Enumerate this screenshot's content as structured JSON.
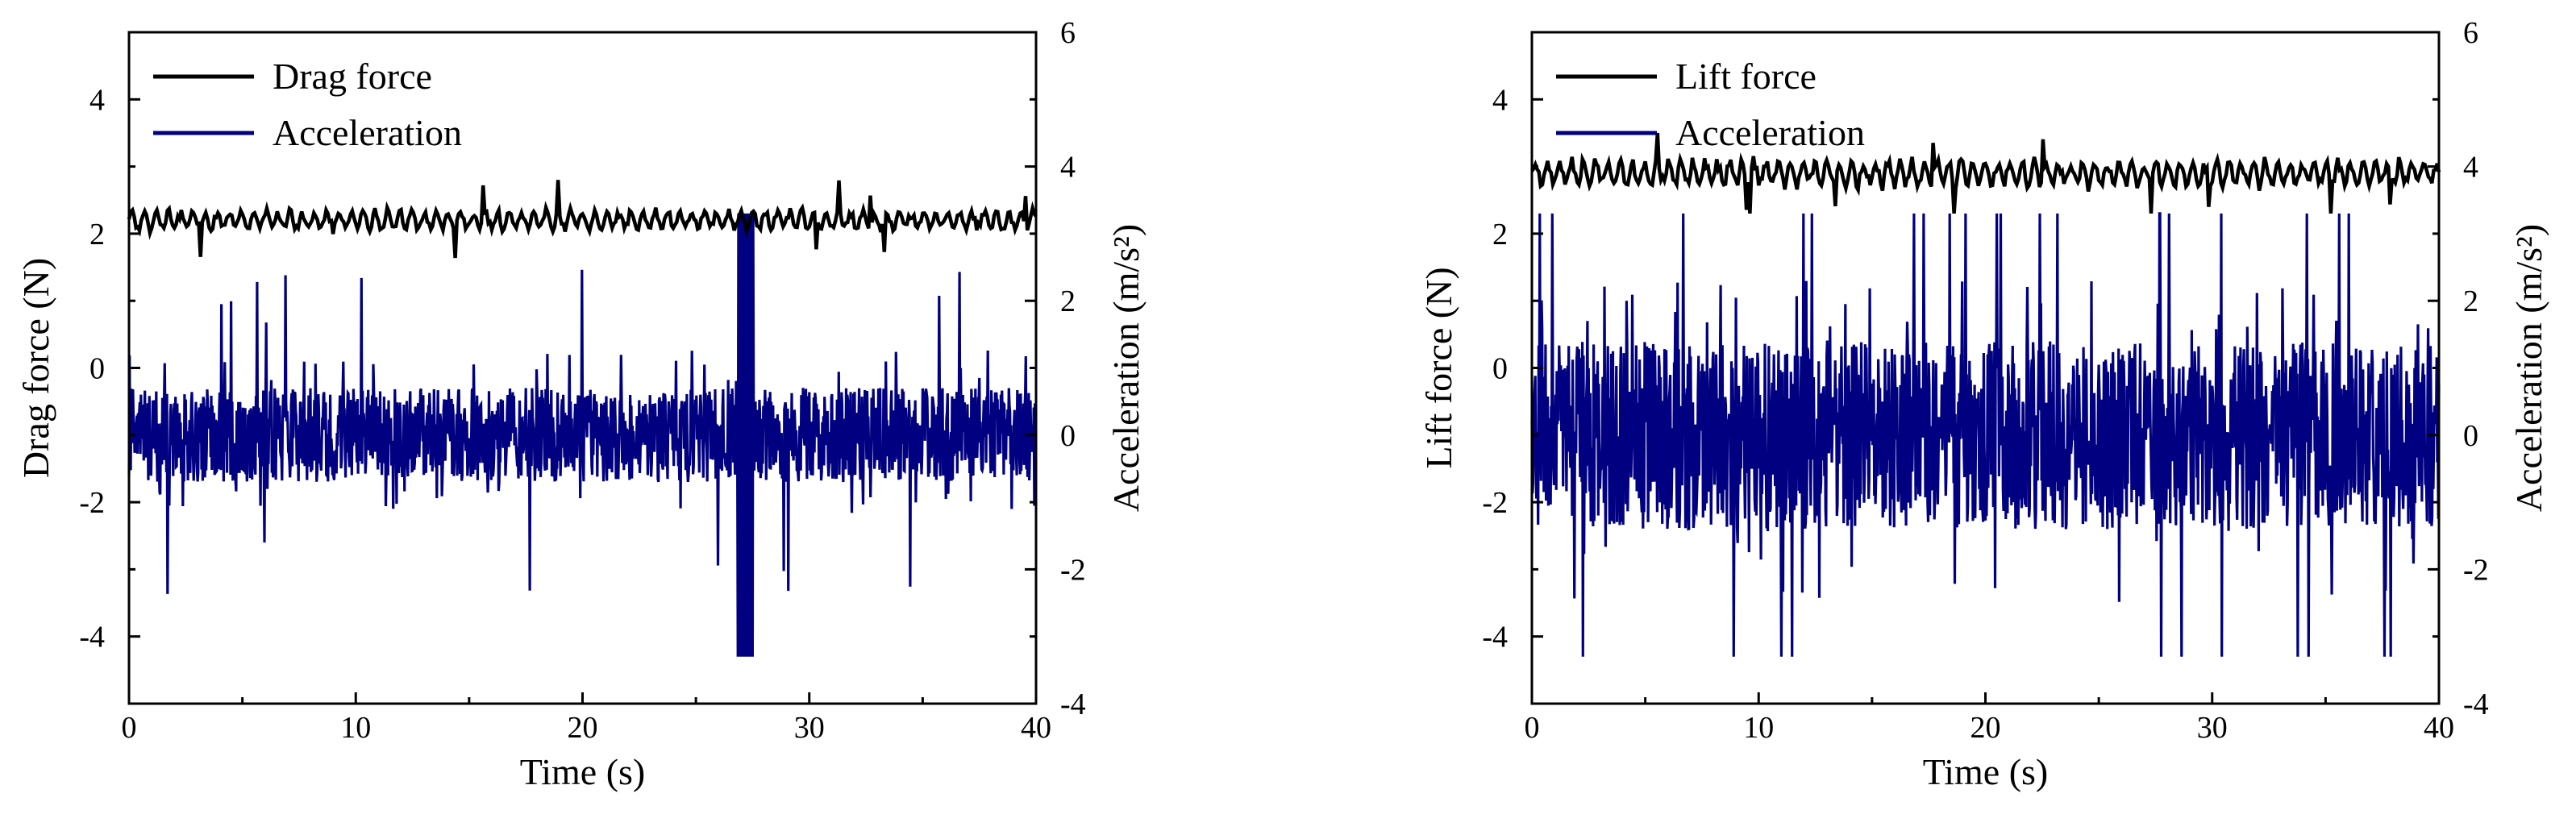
{
  "chart_data": [
    {
      "type": "line",
      "xlabel": "Time (s)",
      "ylabel": "Drag force (N)",
      "y2label": "Acceleration (m/s²)",
      "xlim": [
        0,
        40
      ],
      "ylim": [
        -5,
        5
      ],
      "y2lim": [
        -4,
        6
      ],
      "x_ticks": [
        "0",
        "10",
        "20",
        "30",
        "40"
      ],
      "y_ticks": [
        "-4",
        "-2",
        "0",
        "2",
        "4"
      ],
      "y2_ticks": [
        "-4",
        "-2",
        "0",
        "2",
        "4",
        "6"
      ],
      "grid": false,
      "legend_position": "top-left",
      "series": [
        {
          "name": "Drag force",
          "axis": "left",
          "color": "#000000",
          "mean": 2.2,
          "amplitude": 0.15,
          "min": 1.6,
          "max": 2.8
        },
        {
          "name": "Acceleration",
          "axis": "right",
          "color": "#000080",
          "mean": 0.0,
          "typical_range": [
            -1.0,
            1.0
          ],
          "min": -3.3,
          "max": 3.3,
          "spike_time": 27.2
        }
      ]
    },
    {
      "type": "line",
      "xlabel": "Time (s)",
      "ylabel": "Lift force (N)",
      "y2label": "Acceleration (m/s²)",
      "xlim": [
        0,
        40
      ],
      "ylim": [
        -5,
        5
      ],
      "y2lim": [
        -4,
        6
      ],
      "x_ticks": [
        "0",
        "10",
        "20",
        "30",
        "40"
      ],
      "y_ticks": [
        "-4",
        "-2",
        "0",
        "2",
        "4"
      ],
      "y2_ticks": [
        "-4",
        "-2",
        "0",
        "2",
        "4",
        "6"
      ],
      "grid": false,
      "legend_position": "top-left",
      "series": [
        {
          "name": "Lift force",
          "axis": "left",
          "color": "#000000",
          "mean": 2.9,
          "amplitude": 0.2,
          "min": 2.3,
          "max": 3.5
        },
        {
          "name": "Acceleration",
          "axis": "right",
          "color": "#000080",
          "mean": 0.0,
          "typical_range": [
            -2.0,
            2.0
          ],
          "min": -3.3,
          "max": 3.3
        }
      ]
    }
  ]
}
